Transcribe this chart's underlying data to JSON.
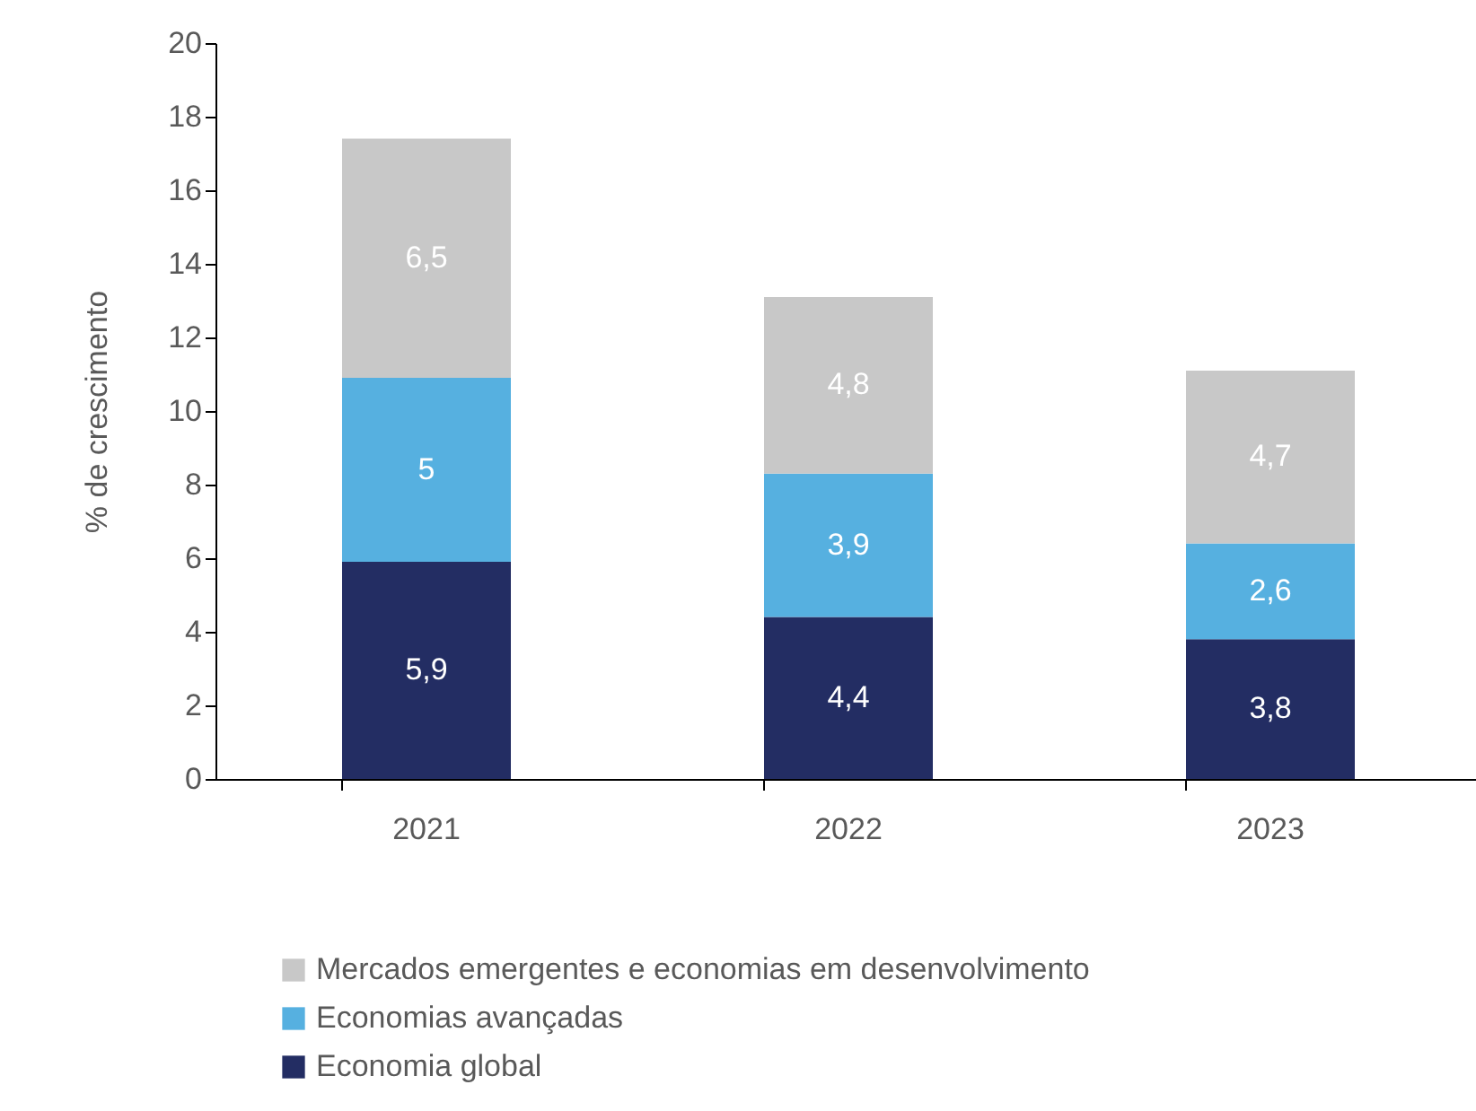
{
  "chart_data": {
    "type": "bar",
    "stacked": true,
    "ylabel": "% de crescimento",
    "categories": [
      "2021",
      "2022",
      "2023"
    ],
    "ylim": [
      0,
      20
    ],
    "yticks": [
      0,
      2,
      4,
      6,
      8,
      10,
      12,
      14,
      16,
      18,
      20
    ],
    "legend": "bottom",
    "grid": false,
    "series": [
      {
        "name": "Economia global",
        "color": "#232d63",
        "values": [
          5.9,
          4.4,
          3.8
        ],
        "value_labels": [
          "5,9",
          "4,4",
          "3,8"
        ]
      },
      {
        "name": "Economias avançadas",
        "color": "#56b0e0",
        "values": [
          5,
          3.9,
          2.6
        ],
        "value_labels": [
          "5",
          "3,9",
          "2,6"
        ]
      },
      {
        "name": "Mercados emergentes e economias em desenvolvimento",
        "color": "#c8c8c8",
        "values": [
          6.5,
          4.8,
          4.7
        ],
        "value_labels": [
          "6,5",
          "4,8",
          "4,7"
        ]
      }
    ]
  }
}
